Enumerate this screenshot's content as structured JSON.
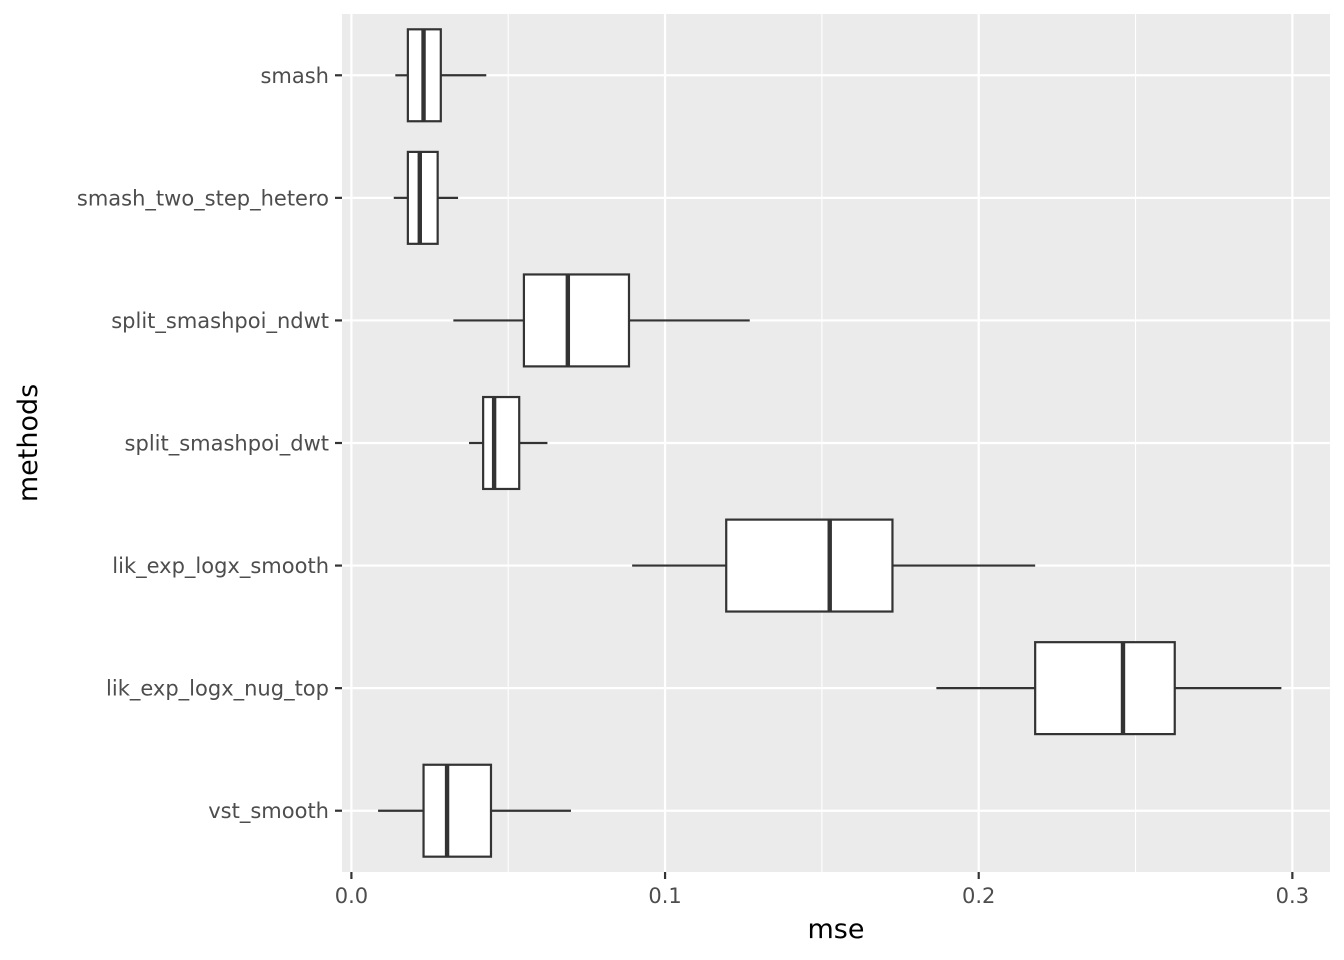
{
  "chart_data": {
    "type": "boxplot",
    "orientation": "horizontal",
    "xlabel": "mse",
    "ylabel": "methods",
    "xlim": [
      -0.003,
      0.312
    ],
    "xticks": [
      {
        "value": 0.0,
        "label": "0.0"
      },
      {
        "value": 0.1,
        "label": "0.1"
      },
      {
        "value": 0.2,
        "label": "0.2"
      },
      {
        "value": 0.3,
        "label": "0.3"
      }
    ],
    "x_minor_ticks": [
      0.05,
      0.15,
      0.25
    ],
    "grid": true,
    "colors": {
      "panel": "#ebebeb",
      "grid": "#ffffff",
      "box_fill": "#ffffff",
      "box_stroke": "#333333",
      "tick_text": "#4d4d4d"
    },
    "categories": [
      "smash",
      "smash_two_step_hetero",
      "split_smashpoi_ndwt",
      "split_smashpoi_dwt",
      "lik_exp_logx_smooth",
      "lik_exp_logx_nug_top",
      "vst_smooth"
    ],
    "boxes": [
      {
        "method": "smash",
        "whisker_low": 0.014,
        "q1": 0.018,
        "median": 0.023,
        "q3": 0.0285,
        "whisker_high": 0.043
      },
      {
        "method": "smash_two_step_hetero",
        "whisker_low": 0.0135,
        "q1": 0.018,
        "median": 0.0218,
        "q3": 0.0275,
        "whisker_high": 0.034
      },
      {
        "method": "split_smashpoi_ndwt",
        "whisker_low": 0.0325,
        "q1": 0.055,
        "median": 0.069,
        "q3": 0.0885,
        "whisker_high": 0.127
      },
      {
        "method": "split_smashpoi_dwt",
        "whisker_low": 0.0375,
        "q1": 0.042,
        "median": 0.0455,
        "q3": 0.0535,
        "whisker_high": 0.0625
      },
      {
        "method": "lik_exp_logx_smooth",
        "whisker_low": 0.0895,
        "q1": 0.1195,
        "median": 0.1525,
        "q3": 0.1725,
        "whisker_high": 0.218
      },
      {
        "method": "lik_exp_logx_nug_top",
        "whisker_low": 0.1865,
        "q1": 0.218,
        "median": 0.246,
        "q3": 0.2625,
        "whisker_high": 0.2965
      },
      {
        "method": "vst_smooth",
        "whisker_low": 0.0085,
        "q1": 0.023,
        "median": 0.0305,
        "q3": 0.0445,
        "whisker_high": 0.07
      }
    ]
  }
}
